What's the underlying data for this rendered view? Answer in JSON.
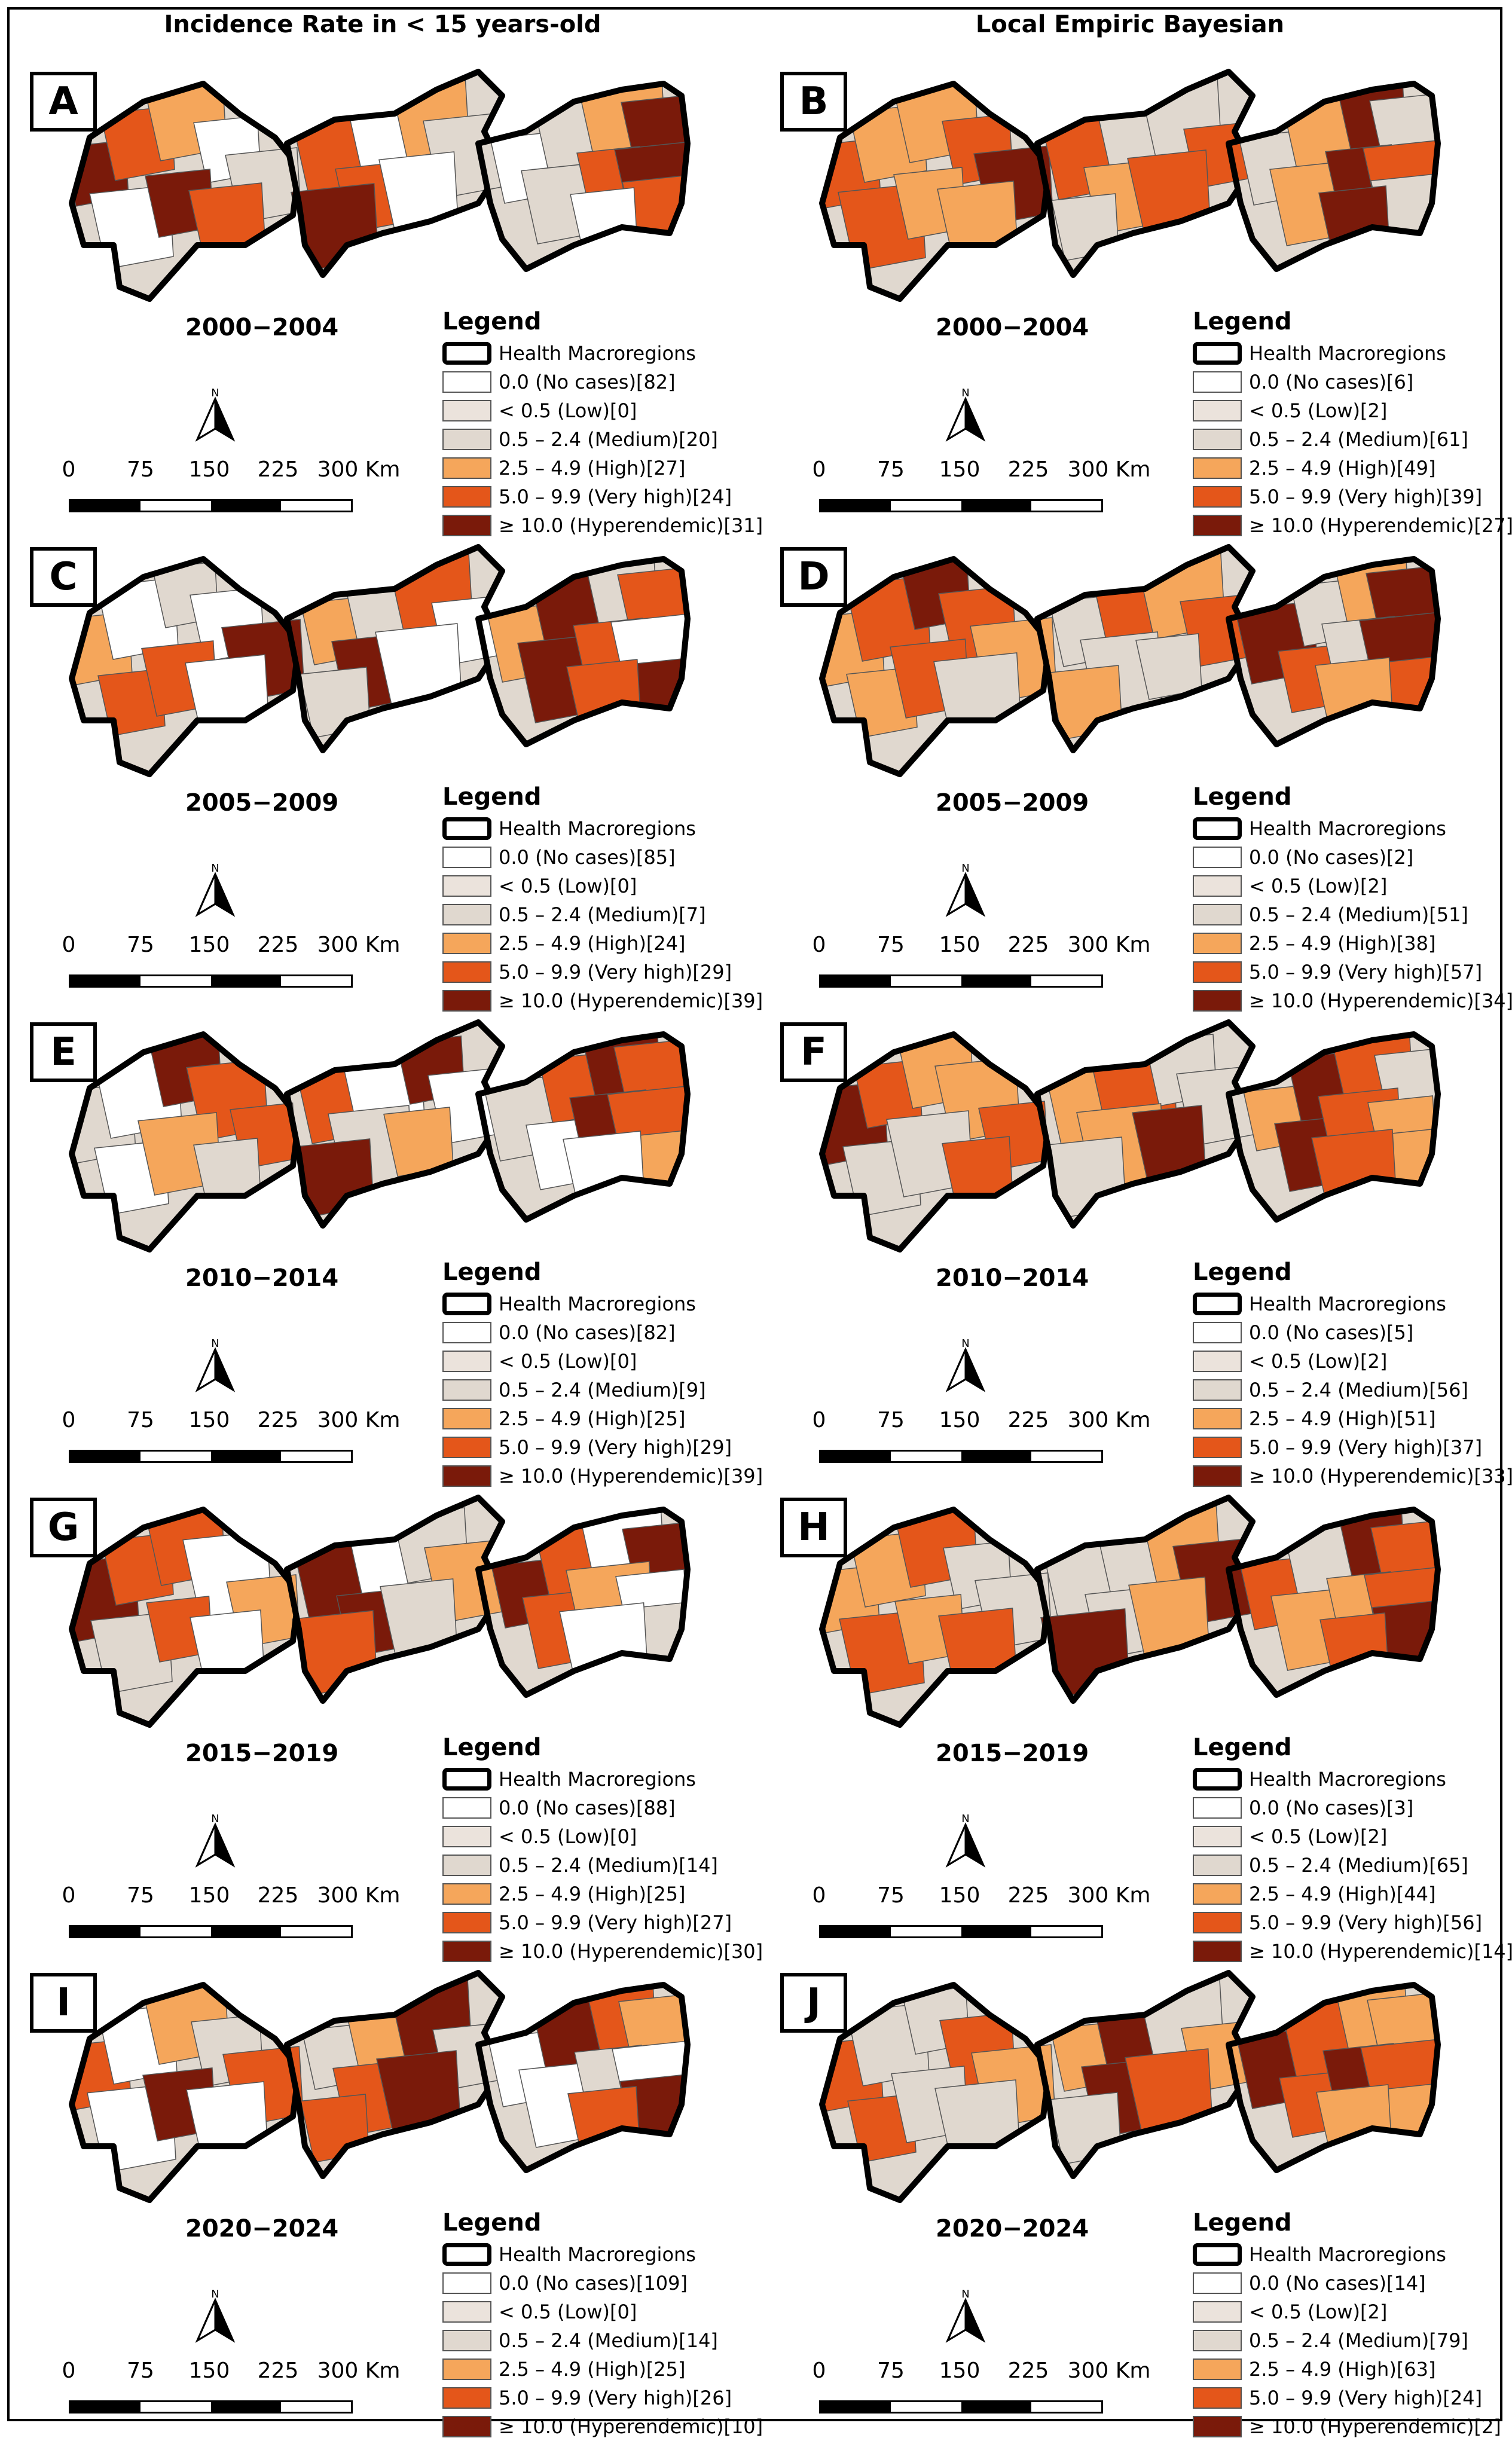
{
  "figure": {
    "col_titles": [
      "Incidence Rate in < 15 years-old",
      "Local Empiric Bayesian"
    ],
    "legend_title": "Legend",
    "macro_label": "Health Macroregions",
    "scale_ticks": [
      "0",
      "75",
      "150",
      "225",
      "300 Km"
    ],
    "north_label": "N",
    "colors": {
      "no_cases": "#ffffff",
      "low": "#ebe3dc",
      "medium": "#e0d8cf",
      "high": "#f5a65b",
      "very_high": "#e4561a",
      "hyperendemic": "#7a1a0a"
    },
    "categories": [
      {
        "key": "no_cases",
        "label": "0.0 (No cases)"
      },
      {
        "key": "low",
        "label": "< 0.5 (Low)"
      },
      {
        "key": "medium",
        "label": "0.5 – 2.4 (Medium)"
      },
      {
        "key": "high",
        "label": "2.5 – 4.9 (High)"
      },
      {
        "key": "very_high",
        "label": "5.0 – 9.9 (Very high)"
      },
      {
        "key": "hyperendemic",
        "label": "≥ 10.0 (Hyperendemic)"
      }
    ]
  },
  "panels": [
    {
      "letter": "A",
      "period": "2000−2004",
      "counts": [
        "82",
        "0",
        "20",
        "27",
        "24",
        "31"
      ],
      "map_palette": "incidence"
    },
    {
      "letter": "B",
      "period": "2000−2004",
      "counts": [
        "6",
        "2",
        "61",
        "49",
        "39",
        "27"
      ],
      "map_palette": "bayesian"
    },
    {
      "letter": "C",
      "period": "2005−2009",
      "counts": [
        "85",
        "0",
        "7",
        "24",
        "29",
        "39"
      ],
      "map_palette": "incidence"
    },
    {
      "letter": "D",
      "period": "2005−2009",
      "counts": [
        "2",
        "2",
        "51",
        "38",
        "57",
        "34"
      ],
      "map_palette": "bayesian"
    },
    {
      "letter": "E",
      "period": "2010−2014",
      "counts": [
        "82",
        "0",
        "9",
        "25",
        "29",
        "39"
      ],
      "map_palette": "incidence"
    },
    {
      "letter": "F",
      "period": "2010−2014",
      "counts": [
        "5",
        "2",
        "56",
        "51",
        "37",
        "33"
      ],
      "map_palette": "bayesian"
    },
    {
      "letter": "G",
      "period": "2015−2019",
      "counts": [
        "88",
        "0",
        "14",
        "25",
        "27",
        "30"
      ],
      "map_palette": "incidence"
    },
    {
      "letter": "H",
      "period": "2015−2019",
      "counts": [
        "3",
        "2",
        "65",
        "44",
        "56",
        "14"
      ],
      "map_palette": "bayesian"
    },
    {
      "letter": "I",
      "period": "2020−2024",
      "counts": [
        "109",
        "0",
        "14",
        "25",
        "26",
        "10"
      ],
      "map_palette": "incidence"
    },
    {
      "letter": "J",
      "period": "2020−2024",
      "counts": [
        "14",
        "2",
        "79",
        "63",
        "24",
        "2"
      ],
      "map_palette": "bayesian"
    }
  ]
}
